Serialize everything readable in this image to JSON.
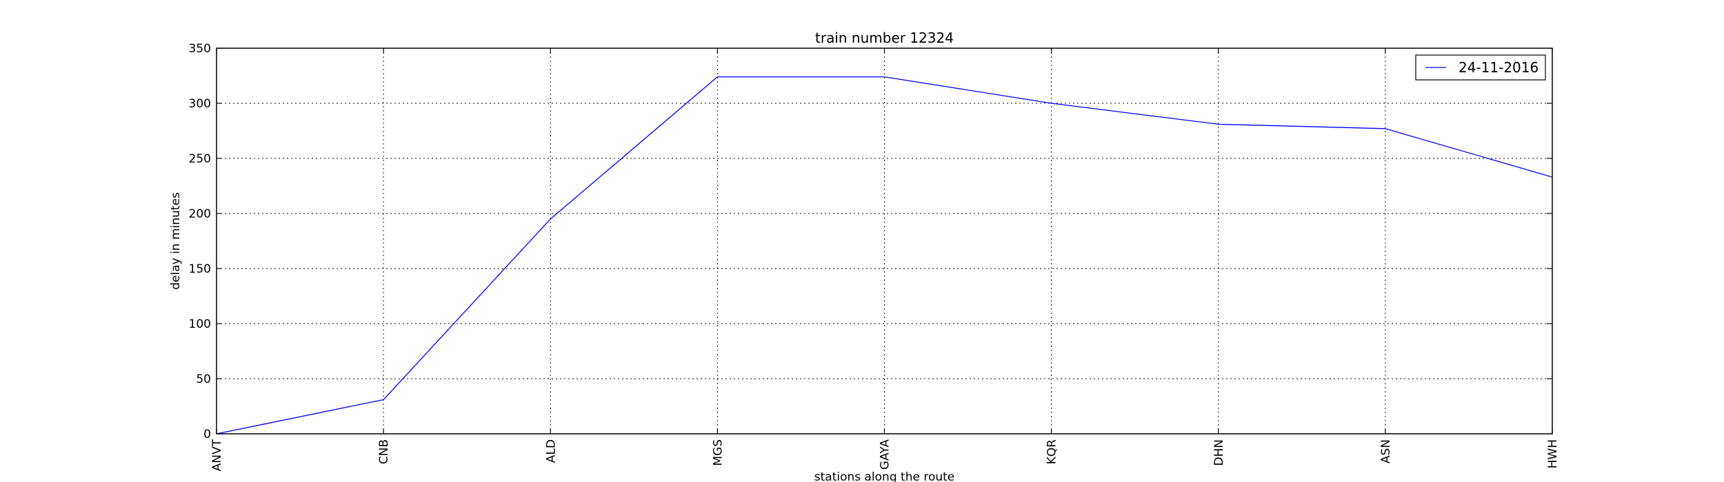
{
  "chart_data": {
    "type": "line",
    "title": "train number 12324",
    "xlabel": "stations along the route",
    "ylabel": "delay in minutes",
    "categories": [
      "ANVT",
      "CNB",
      "ALD",
      "MGS",
      "GAYA",
      "KQR",
      "DHN",
      "ASN",
      "HWH"
    ],
    "ylim": [
      0,
      350
    ],
    "yticks": [
      0,
      50,
      100,
      150,
      200,
      250,
      300,
      350
    ],
    "grid": true,
    "legend_position": "top-right",
    "series": [
      {
        "name": "24-11-2016",
        "color": "#0000ff",
        "values": [
          0,
          31,
          195,
          324,
          324,
          300,
          281,
          277,
          233
        ]
      }
    ]
  }
}
